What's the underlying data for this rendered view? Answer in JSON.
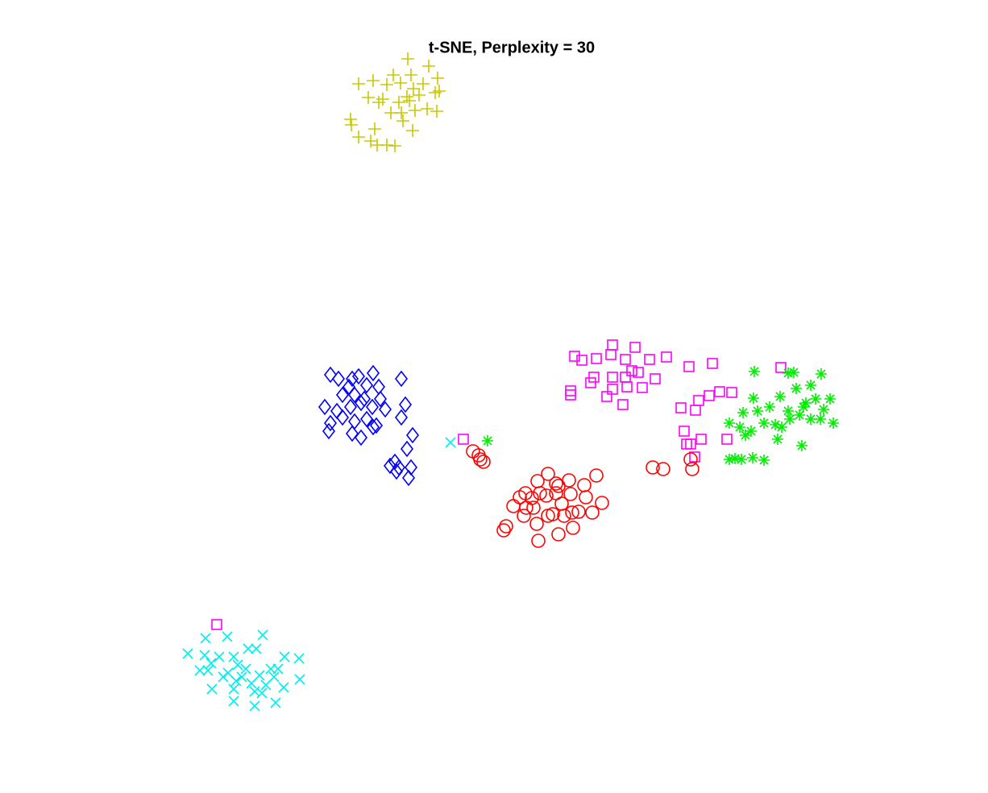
{
  "chart_data": {
    "type": "scatter",
    "title": "t-SNE, Perplexity = 30",
    "xlim": [
      -47,
      47
    ],
    "ylim": [
      -43,
      46
    ],
    "axes_visible": false,
    "series": [
      {
        "color": "#c8c800",
        "marker": "plus",
        "x": [
          -12.4,
          -9.8,
          -14.2,
          -12,
          -8.7,
          -18.5,
          -16.7,
          -15,
          -13.3,
          -10.5,
          -11.7,
          -8.5,
          -17.3,
          -15.5,
          -12.5,
          -11,
          -9,
          -16,
          -13.5,
          -12.2,
          -10,
          -8.8,
          -14.5,
          -13.2,
          -11.5,
          -19.5,
          -19.4,
          -16.5,
          -13,
          -11.8,
          -18.5,
          -17,
          -16.2,
          -15,
          -14
        ],
        "y": [
          42.7,
          41.8,
          40.7,
          40.7,
          40.3,
          39.6,
          40,
          39.5,
          39.7,
          39.6,
          39,
          38.7,
          37.9,
          37.7,
          38,
          38.2,
          38.5,
          37.3,
          37.3,
          37.5,
          36.5,
          36.2,
          36,
          36,
          36.3,
          35.2,
          34.5,
          34,
          35,
          33.8,
          33,
          32.5,
          32,
          32,
          31.9
        ]
      },
      {
        "color": "#0000ff",
        "marker": "diamond",
        "x": [
          -22,
          -21,
          -19.3,
          -18.5,
          -16.7,
          -13.2,
          -19.7,
          -17.5,
          -16,
          -20.5,
          -19,
          -17.8,
          -15.8,
          -22.7,
          -21.2,
          -19.5,
          -18.2,
          -16.8,
          -15.2,
          -12.7,
          -20.5,
          -19,
          -17.5,
          -16.3,
          -13.2,
          -22,
          -22.2,
          -19.3,
          -18.2,
          -16.7,
          -11.8,
          -12.5,
          -14,
          -14.6,
          -13.5,
          -12,
          -12.3,
          -13.8
        ],
        "y": [
          3.5,
          3,
          3,
          3.3,
          3.7,
          3,
          2,
          2.2,
          2,
          1,
          1,
          0.5,
          0.5,
          -0.5,
          -1,
          -0.5,
          0,
          -0.5,
          -0.8,
          -0.2,
          -1.8,
          -2.3,
          -2,
          -2.8,
          -1.8,
          -2.5,
          -3.5,
          -3.8,
          -4.3,
          -3,
          -4,
          -5.7,
          -7.3,
          -7.8,
          -8,
          -8,
          -9.3,
          -8.5
        ]
      },
      {
        "color": "#ff00ff",
        "marker": "square",
        "x": [
          8.3,
          9.2,
          11,
          13,
          15.8,
          12.8,
          14.6,
          17.6,
          19.7,
          22.5,
          25.4,
          33.9,
          10.7,
          13,
          15.4,
          16.2,
          14.6,
          18.3,
          10.3,
          7.8,
          7.8,
          13,
          14.8,
          16.7,
          12.3,
          14.3,
          21.5,
          23.3,
          23.7,
          25,
          26.3,
          27.8,
          21.9,
          24,
          27.2,
          22.2,
          22.7,
          23.2,
          -5.5,
          -36.1
        ],
        "y": [
          5.8,
          5.3,
          5.5,
          7.2,
          6.9,
          6,
          5.4,
          5.4,
          5.7,
          4.5,
          4.9,
          4.4,
          3.2,
          3.2,
          4,
          3.8,
          3.2,
          3,
          2.5,
          1.5,
          1,
          1.7,
          2,
          1.9,
          0.8,
          -0.2,
          -0.6,
          -0.9,
          0.3,
          0.9,
          1.4,
          1.3,
          -3.5,
          -4.5,
          -4.5,
          -5.1,
          -5.1,
          -6.7,
          -4.5,
          -27.5
        ]
      },
      {
        "color": "#00ee00",
        "marker": "asterisk",
        "x": [
          30.6,
          34.8,
          35.5,
          38.9,
          33.8,
          30.5,
          37.6,
          35.8,
          38.2,
          40,
          29.2,
          31,
          32.5,
          34.8,
          36.7,
          39.2,
          27.5,
          28.8,
          30.2,
          31.8,
          33.2,
          35,
          36.2,
          37.6,
          38.8,
          40.4,
          29.5,
          33.5,
          36.5,
          28.2,
          27.5,
          29,
          30.4,
          31.8,
          -2.5,
          37,
          34
        ],
        "y": [
          3.9,
          3.7,
          3.8,
          3.6,
          0.8,
          0.6,
          2.2,
          1.8,
          0.5,
          0.5,
          -1.2,
          -1,
          -0.5,
          -1,
          -0.5,
          -0.8,
          -2.5,
          -3,
          -3.5,
          -2.5,
          -2.7,
          -2,
          -1.5,
          -2,
          -2,
          -2.5,
          -4,
          -4.5,
          -5.3,
          -6.9,
          -7,
          -7,
          -6.8,
          -7.1,
          -4.7,
          0,
          -3
        ]
      },
      {
        "color": "#ff0000",
        "marker": "circle",
        "x": [
          -4.3,
          -3.6,
          -3,
          -3.4,
          5,
          3.7,
          7.6,
          11,
          9.5,
          6,
          2.2,
          3,
          4,
          6,
          7.8,
          1.5,
          0.7,
          2.3,
          4.8,
          6.7,
          9.7,
          11.7,
          10.5,
          8.8,
          7,
          5.6,
          3.2,
          2,
          3.6,
          5,
          8,
          -0.2,
          -0.5,
          3.8,
          6.3,
          8.1,
          18,
          19.3,
          22.7,
          22.9,
          6.3
        ],
        "y": [
          -6,
          -6.5,
          -7.3,
          -7,
          -8.8,
          -9.7,
          -9.6,
          -9,
          -10.2,
          -10,
          -11.2,
          -11.8,
          -11.2,
          -11.2,
          -11.3,
          -11.7,
          -12.8,
          -13,
          -11.5,
          -12.5,
          -11.7,
          -12.4,
          -13.6,
          -13.5,
          -14,
          -13.8,
          -13,
          -14,
          -15,
          -14,
          -13.6,
          -15.3,
          -15.8,
          -17.1,
          -16.3,
          -15.5,
          -8,
          -8.2,
          -7,
          -8.2,
          -10.3
        ]
      },
      {
        "color": "#00eeee",
        "marker": "cross",
        "x": [
          -7.1,
          -34.8,
          -30.4,
          -37.5,
          -31.2,
          -32.2,
          -39.7,
          -37.6,
          -35.8,
          -34,
          -25.9,
          -27.7,
          -36.8,
          -33.5,
          -32.5,
          -29.4,
          -28.5,
          -38.2,
          -37.2,
          -34.7,
          -35.3,
          -33,
          -30.8,
          -29,
          -25.8,
          -33.7,
          -31.8,
          -30,
          -27.8,
          -36.7,
          -34,
          -31.4,
          -30.5,
          -34,
          -31.4,
          -28.8
        ],
        "y": [
          -4.9,
          -29,
          -28.8,
          -29.2,
          -30.5,
          -30.5,
          -31.1,
          -31.3,
          -31.5,
          -31.5,
          -31.7,
          -31.5,
          -32.3,
          -32.5,
          -33,
          -33,
          -33,
          -33.2,
          -33.2,
          -33.5,
          -34,
          -34,
          -33.8,
          -34,
          -34.3,
          -34.5,
          -34.8,
          -35,
          -35.3,
          -35.5,
          -35.5,
          -35.8,
          -36,
          -37,
          -37.6,
          -37.2
        ]
      }
    ]
  }
}
